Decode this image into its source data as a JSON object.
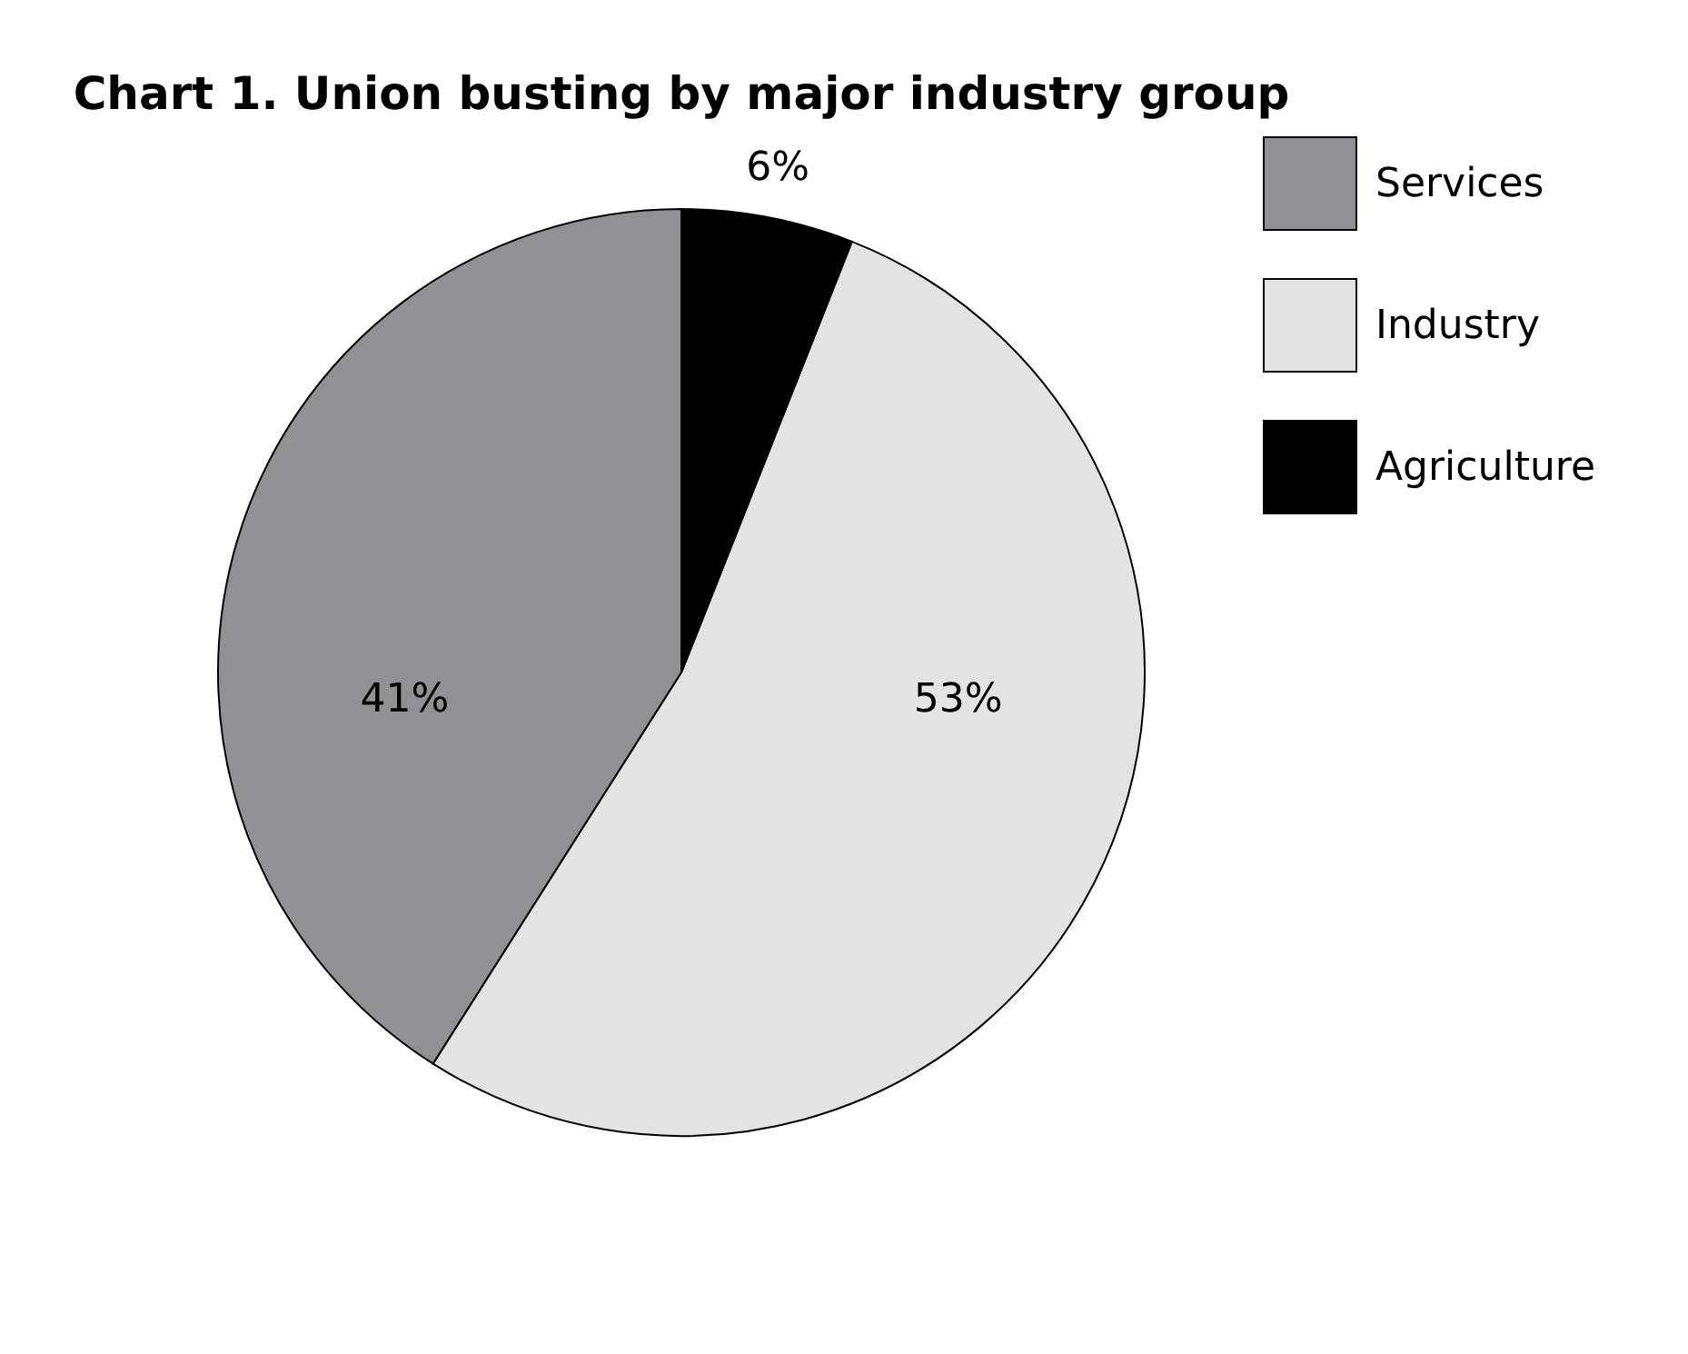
{
  "chart_data": {
    "type": "pie",
    "title": "Chart 1. Union busting by major industry group",
    "categories": [
      "Services",
      "Industry",
      "Agriculture"
    ],
    "values": [
      41,
      53,
      6
    ],
    "colors": [
      "#8f9194",
      "#e2e3e5",
      "#000000"
    ],
    "value_labels": [
      "41%",
      "53%",
      "6%"
    ],
    "legend": "top right"
  }
}
